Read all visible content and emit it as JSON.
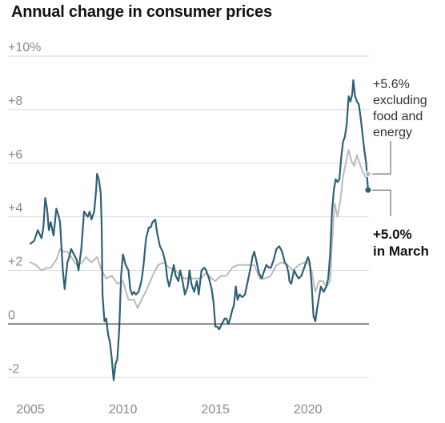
{
  "chart_data": {
    "type": "line",
    "title": "Annual change in consumer prices",
    "xlabel": "",
    "ylabel": "",
    "xlim": [
      2005,
      2023.3
    ],
    "ylim": [
      -2.5,
      10
    ],
    "grid": "horizontal",
    "colors": {
      "all_items": "#2d6177",
      "core": "#bbbbbb",
      "zero_line": "#333333",
      "grid": "#d9d9d9"
    },
    "x_ticks": [
      {
        "value": 2005,
        "label": "2005"
      },
      {
        "value": 2010,
        "label": "2010"
      },
      {
        "value": 2015,
        "label": "2015"
      },
      {
        "value": 2020,
        "label": "2020"
      }
    ],
    "y_ticks": [
      {
        "value": 10,
        "label": "+10%"
      },
      {
        "value": 8,
        "label": "+8"
      },
      {
        "value": 6,
        "label": "+6"
      },
      {
        "value": 4,
        "label": "+4"
      },
      {
        "value": 2,
        "label": "+2"
      },
      {
        "value": 0,
        "label": "0"
      },
      {
        "value": -2,
        "label": "-2"
      }
    ],
    "series": [
      {
        "id": "all_items",
        "points": [
          [
            2005.0,
            3.0
          ],
          [
            2005.2,
            3.1
          ],
          [
            2005.4,
            3.5
          ],
          [
            2005.6,
            3.2
          ],
          [
            2005.7,
            3.6
          ],
          [
            2005.8,
            4.7
          ],
          [
            2005.9,
            4.3
          ],
          [
            2006.0,
            3.5
          ],
          [
            2006.1,
            3.8
          ],
          [
            2006.25,
            3.3
          ],
          [
            2006.4,
            4.3
          ],
          [
            2006.5,
            4.1
          ],
          [
            2006.6,
            3.8
          ],
          [
            2006.75,
            2.0
          ],
          [
            2006.85,
            1.3
          ],
          [
            2007.0,
            2.3
          ],
          [
            2007.1,
            2.5
          ],
          [
            2007.2,
            2.8
          ],
          [
            2007.35,
            2.6
          ],
          [
            2007.5,
            2.4
          ],
          [
            2007.6,
            2.0
          ],
          [
            2007.75,
            2.8
          ],
          [
            2007.9,
            4.2
          ],
          [
            2008.0,
            4.1
          ],
          [
            2008.1,
            4.0
          ],
          [
            2008.2,
            4.2
          ],
          [
            2008.3,
            3.9
          ],
          [
            2008.45,
            4.2
          ],
          [
            2008.55,
            5.0
          ],
          [
            2008.6,
            5.6
          ],
          [
            2008.7,
            5.4
          ],
          [
            2008.8,
            4.9
          ],
          [
            2008.85,
            3.7
          ],
          [
            2008.9,
            1.1
          ],
          [
            2009.0,
            0.1
          ],
          [
            2009.1,
            0.2
          ],
          [
            2009.2,
            -0.4
          ],
          [
            2009.3,
            -0.7
          ],
          [
            2009.4,
            -1.3
          ],
          [
            2009.5,
            -2.1
          ],
          [
            2009.6,
            -1.5
          ],
          [
            2009.7,
            -1.3
          ],
          [
            2009.8,
            -0.2
          ],
          [
            2009.9,
            1.8
          ],
          [
            2010.0,
            2.6
          ],
          [
            2010.15,
            2.2
          ],
          [
            2010.3,
            2.0
          ],
          [
            2010.4,
            1.3
          ],
          [
            2010.5,
            1.1
          ],
          [
            2010.6,
            1.2
          ],
          [
            2010.7,
            1.1
          ],
          [
            2010.85,
            1.2
          ],
          [
            2011.0,
            1.6
          ],
          [
            2011.1,
            2.1
          ],
          [
            2011.25,
            3.2
          ],
          [
            2011.4,
            3.6
          ],
          [
            2011.5,
            3.6
          ],
          [
            2011.6,
            3.8
          ],
          [
            2011.75,
            3.9
          ],
          [
            2011.85,
            3.4
          ],
          [
            2012.0,
            2.9
          ],
          [
            2012.15,
            2.7
          ],
          [
            2012.3,
            2.3
          ],
          [
            2012.4,
            1.7
          ],
          [
            2012.5,
            1.4
          ],
          [
            2012.6,
            1.7
          ],
          [
            2012.75,
            2.2
          ],
          [
            2012.85,
            1.8
          ],
          [
            2013.0,
            1.6
          ],
          [
            2013.1,
            2.0
          ],
          [
            2013.25,
            1.5
          ],
          [
            2013.35,
            1.1
          ],
          [
            2013.5,
            1.4
          ],
          [
            2013.6,
            2.0
          ],
          [
            2013.7,
            1.5
          ],
          [
            2013.85,
            1.2
          ],
          [
            2014.0,
            1.6
          ],
          [
            2014.1,
            1.1
          ],
          [
            2014.25,
            2.0
          ],
          [
            2014.4,
            2.1
          ],
          [
            2014.5,
            2.0
          ],
          [
            2014.65,
            1.7
          ],
          [
            2014.8,
            1.3
          ],
          [
            2014.9,
            0.8
          ],
          [
            2015.0,
            -0.1
          ],
          [
            2015.1,
            -0.1
          ],
          [
            2015.2,
            -0.2
          ],
          [
            2015.35,
            0.0
          ],
          [
            2015.5,
            0.2
          ],
          [
            2015.6,
            0.2
          ],
          [
            2015.7,
            0.0
          ],
          [
            2015.8,
            0.2
          ],
          [
            2015.9,
            0.5
          ],
          [
            2016.0,
            0.7
          ],
          [
            2016.1,
            1.4
          ],
          [
            2016.2,
            0.9
          ],
          [
            2016.3,
            1.1
          ],
          [
            2016.45,
            1.0
          ],
          [
            2016.6,
            1.1
          ],
          [
            2016.75,
            1.6
          ],
          [
            2016.9,
            2.1
          ],
          [
            2017.0,
            2.5
          ],
          [
            2017.1,
            2.7
          ],
          [
            2017.2,
            2.4
          ],
          [
            2017.35,
            1.9
          ],
          [
            2017.5,
            1.7
          ],
          [
            2017.6,
            1.9
          ],
          [
            2017.75,
            2.2
          ],
          [
            2017.9,
            2.1
          ],
          [
            2018.0,
            2.1
          ],
          [
            2018.15,
            2.4
          ],
          [
            2018.3,
            2.8
          ],
          [
            2018.45,
            2.9
          ],
          [
            2018.6,
            2.7
          ],
          [
            2018.75,
            2.3
          ],
          [
            2018.85,
            2.2
          ],
          [
            2018.95,
            1.9
          ],
          [
            2019.0,
            1.6
          ],
          [
            2019.1,
            1.5
          ],
          [
            2019.25,
            2.0
          ],
          [
            2019.4,
            1.8
          ],
          [
            2019.5,
            1.7
          ],
          [
            2019.65,
            1.8
          ],
          [
            2019.8,
            2.1
          ],
          [
            2019.9,
            2.3
          ],
          [
            2020.0,
            2.5
          ],
          [
            2020.1,
            2.3
          ],
          [
            2020.2,
            1.5
          ],
          [
            2020.3,
            0.3
          ],
          [
            2020.4,
            0.1
          ],
          [
            2020.5,
            0.6
          ],
          [
            2020.6,
            1.0
          ],
          [
            2020.7,
            1.4
          ],
          [
            2020.85,
            1.2
          ],
          [
            2021.0,
            1.4
          ],
          [
            2021.1,
            1.7
          ],
          [
            2021.2,
            2.6
          ],
          [
            2021.3,
            4.2
          ],
          [
            2021.4,
            5.0
          ],
          [
            2021.5,
            5.4
          ],
          [
            2021.6,
            5.3
          ],
          [
            2021.7,
            5.4
          ],
          [
            2021.8,
            6.2
          ],
          [
            2021.9,
            6.8
          ],
          [
            2022.0,
            7.0
          ],
          [
            2022.1,
            7.5
          ],
          [
            2022.2,
            8.5
          ],
          [
            2022.3,
            8.3
          ],
          [
            2022.4,
            8.6
          ],
          [
            2022.45,
            9.1
          ],
          [
            2022.55,
            8.5
          ],
          [
            2022.65,
            8.3
          ],
          [
            2022.75,
            8.2
          ],
          [
            2022.85,
            7.7
          ],
          [
            2022.95,
            7.1
          ],
          [
            2023.05,
            6.5
          ],
          [
            2023.15,
            6.0
          ],
          [
            2023.25,
            5.0
          ]
        ]
      },
      {
        "id": "core",
        "points": [
          [
            2005.0,
            2.3
          ],
          [
            2005.3,
            2.2
          ],
          [
            2005.6,
            2.0
          ],
          [
            2005.9,
            2.1
          ],
          [
            2006.1,
            2.1
          ],
          [
            2006.4,
            2.4
          ],
          [
            2006.6,
            2.8
          ],
          [
            2006.8,
            2.7
          ],
          [
            2007.0,
            2.7
          ],
          [
            2007.2,
            2.5
          ],
          [
            2007.5,
            2.2
          ],
          [
            2007.8,
            2.3
          ],
          [
            2008.0,
            2.5
          ],
          [
            2008.3,
            2.3
          ],
          [
            2008.6,
            2.5
          ],
          [
            2008.85,
            2.0
          ],
          [
            2009.1,
            1.7
          ],
          [
            2009.4,
            1.8
          ],
          [
            2009.7,
            1.5
          ],
          [
            2010.0,
            1.6
          ],
          [
            2010.3,
            0.9
          ],
          [
            2010.6,
            0.9
          ],
          [
            2010.8,
            0.6
          ],
          [
            2011.0,
            0.9
          ],
          [
            2011.3,
            1.3
          ],
          [
            2011.6,
            1.8
          ],
          [
            2011.9,
            2.2
          ],
          [
            2012.2,
            2.3
          ],
          [
            2012.5,
            2.1
          ],
          [
            2012.8,
            2.0
          ],
          [
            2013.0,
            1.9
          ],
          [
            2013.3,
            1.7
          ],
          [
            2013.6,
            1.7
          ],
          [
            2013.9,
            1.7
          ],
          [
            2014.2,
            1.7
          ],
          [
            2014.5,
            1.9
          ],
          [
            2014.8,
            1.7
          ],
          [
            2015.0,
            1.6
          ],
          [
            2015.3,
            1.8
          ],
          [
            2015.6,
            1.8
          ],
          [
            2015.9,
            2.1
          ],
          [
            2016.2,
            2.2
          ],
          [
            2016.5,
            2.2
          ],
          [
            2016.8,
            2.2
          ],
          [
            2017.1,
            2.2
          ],
          [
            2017.4,
            1.7
          ],
          [
            2017.7,
            1.7
          ],
          [
            2018.0,
            1.8
          ],
          [
            2018.3,
            2.2
          ],
          [
            2018.6,
            2.3
          ],
          [
            2018.9,
            2.2
          ],
          [
            2019.2,
            2.0
          ],
          [
            2019.5,
            2.2
          ],
          [
            2019.8,
            2.3
          ],
          [
            2020.0,
            2.3
          ],
          [
            2020.2,
            2.0
          ],
          [
            2020.4,
            1.2
          ],
          [
            2020.6,
            1.6
          ],
          [
            2020.8,
            1.6
          ],
          [
            2021.0,
            1.4
          ],
          [
            2021.2,
            1.6
          ],
          [
            2021.3,
            3.0
          ],
          [
            2021.45,
            4.5
          ],
          [
            2021.6,
            4.0
          ],
          [
            2021.75,
            4.6
          ],
          [
            2021.9,
            5.5
          ],
          [
            2022.05,
            6.0
          ],
          [
            2022.2,
            6.5
          ],
          [
            2022.35,
            6.1
          ],
          [
            2022.5,
            5.9
          ],
          [
            2022.65,
            6.3
          ],
          [
            2022.8,
            6.0
          ],
          [
            2022.95,
            5.7
          ],
          [
            2023.1,
            5.5
          ],
          [
            2023.25,
            5.6
          ]
        ]
      }
    ],
    "annotations": {
      "core_label": [
        "+5.6%",
        "excluding",
        "food and",
        "energy"
      ],
      "all_label": [
        "+5.0%",
        "in March"
      ]
    }
  }
}
